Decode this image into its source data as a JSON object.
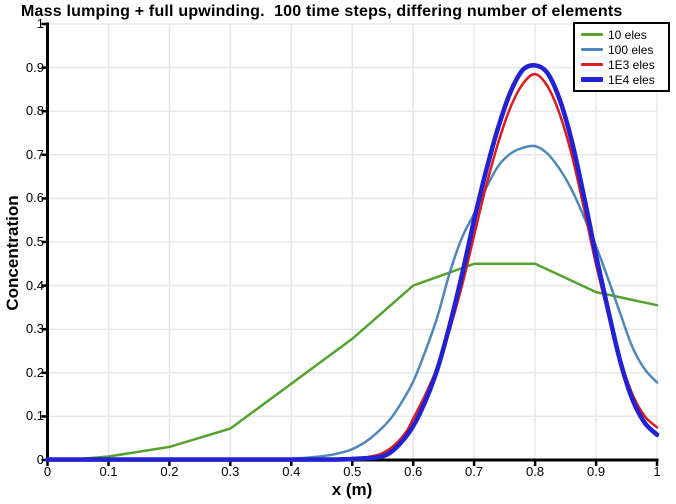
{
  "title": "Mass lumping + full upwinding.  100 time steps, differing number of elements",
  "colors": {
    "background": "#FFFFFF",
    "grid": "#E8E8E8",
    "axis": "#000000",
    "legend_border": "#000000"
  },
  "legend": {
    "position": "top-right",
    "items": [
      "10 eles",
      "100 eles",
      "1E3 eles",
      "1E4 eles"
    ]
  },
  "chart_data": {
    "type": "line",
    "title": "Mass lumping + full upwinding.  100 time steps, differing number of elements",
    "xlabel": "x (m)",
    "ylabel": "Concentration",
    "xlim": [
      0,
      1
    ],
    "ylim": [
      0,
      1
    ],
    "grid": true,
    "legend_position": "top-right",
    "x_tick_values": [
      0,
      0.1,
      0.2,
      0.3,
      0.4,
      0.5,
      0.6,
      0.7,
      0.8,
      0.9,
      1
    ],
    "x_ticks": [
      "0",
      "0.1",
      "0.2",
      "0.3",
      "0.4",
      "0.5",
      "0.6",
      "0.7",
      "0.8",
      "0.9",
      "1"
    ],
    "y_tick_values": [
      0,
      0.1,
      0.2,
      0.3,
      0.4,
      0.5,
      0.6,
      0.7,
      0.8,
      0.9,
      1
    ],
    "y_ticks": [
      "0",
      "0.1",
      "0.2",
      "0.3",
      "0.4",
      "0.5",
      "0.6",
      "0.7",
      "0.8",
      "0.9",
      "1"
    ],
    "series": [
      {
        "name": "10 eles",
        "color": "#54A32C",
        "width": 2.5,
        "smooth": false,
        "points": [
          [
            0,
            0.001
          ],
          [
            0.05,
            0.002
          ],
          [
            0.1,
            0.008
          ],
          [
            0.2,
            0.03
          ],
          [
            0.3,
            0.072
          ],
          [
            0.4,
            0.175
          ],
          [
            0.5,
            0.278
          ],
          [
            0.6,
            0.4
          ],
          [
            0.7,
            0.45
          ],
          [
            0.8,
            0.45
          ],
          [
            0.9,
            0.385
          ],
          [
            1,
            0.355
          ]
        ]
      },
      {
        "name": "100 eles",
        "color": "#4E87BC",
        "width": 2.5,
        "smooth": true,
        "points": [
          [
            0,
            0.001
          ],
          [
            0.25,
            0.001
          ],
          [
            0.35,
            0.002
          ],
          [
            0.4,
            0.003
          ],
          [
            0.44,
            0.007
          ],
          [
            0.47,
            0.013
          ],
          [
            0.5,
            0.025
          ],
          [
            0.53,
            0.05
          ],
          [
            0.56,
            0.09
          ],
          [
            0.58,
            0.13
          ],
          [
            0.6,
            0.18
          ],
          [
            0.62,
            0.25
          ],
          [
            0.64,
            0.33
          ],
          [
            0.66,
            0.43
          ],
          [
            0.68,
            0.51
          ],
          [
            0.7,
            0.565
          ],
          [
            0.72,
            0.625
          ],
          [
            0.74,
            0.675
          ],
          [
            0.76,
            0.703
          ],
          [
            0.78,
            0.716
          ],
          [
            0.8,
            0.72
          ],
          [
            0.82,
            0.703
          ],
          [
            0.84,
            0.668
          ],
          [
            0.86,
            0.62
          ],
          [
            0.88,
            0.558
          ],
          [
            0.9,
            0.49
          ],
          [
            0.92,
            0.415
          ],
          [
            0.94,
            0.335
          ],
          [
            0.96,
            0.258
          ],
          [
            0.98,
            0.208
          ],
          [
            1,
            0.178
          ]
        ]
      },
      {
        "name": "1E3 eles",
        "color": "#E01B1B",
        "width": 2.5,
        "smooth": true,
        "points": [
          [
            0,
            0.001
          ],
          [
            0.3,
            0.001
          ],
          [
            0.45,
            0.002
          ],
          [
            0.5,
            0.004
          ],
          [
            0.53,
            0.008
          ],
          [
            0.55,
            0.016
          ],
          [
            0.57,
            0.035
          ],
          [
            0.59,
            0.068
          ],
          [
            0.6,
            0.095
          ],
          [
            0.62,
            0.15
          ],
          [
            0.64,
            0.215
          ],
          [
            0.66,
            0.3
          ],
          [
            0.68,
            0.4
          ],
          [
            0.7,
            0.515
          ],
          [
            0.72,
            0.63
          ],
          [
            0.74,
            0.73
          ],
          [
            0.76,
            0.81
          ],
          [
            0.78,
            0.863
          ],
          [
            0.8,
            0.885
          ],
          [
            0.82,
            0.858
          ],
          [
            0.84,
            0.795
          ],
          [
            0.86,
            0.7
          ],
          [
            0.88,
            0.578
          ],
          [
            0.9,
            0.448
          ],
          [
            0.92,
            0.335
          ],
          [
            0.94,
            0.23
          ],
          [
            0.96,
            0.15
          ],
          [
            0.98,
            0.1
          ],
          [
            1,
            0.075
          ]
        ]
      },
      {
        "name": "1E4 eles",
        "color": "#2222D2",
        "width": 4.6,
        "smooth": true,
        "points": [
          [
            0,
            0.001
          ],
          [
            0.3,
            0.001
          ],
          [
            0.46,
            0.001
          ],
          [
            0.51,
            0.003
          ],
          [
            0.54,
            0.006
          ],
          [
            0.56,
            0.015
          ],
          [
            0.58,
            0.04
          ],
          [
            0.6,
            0.078
          ],
          [
            0.62,
            0.135
          ],
          [
            0.64,
            0.21
          ],
          [
            0.66,
            0.31
          ],
          [
            0.68,
            0.425
          ],
          [
            0.7,
            0.55
          ],
          [
            0.72,
            0.665
          ],
          [
            0.74,
            0.765
          ],
          [
            0.76,
            0.845
          ],
          [
            0.78,
            0.895
          ],
          [
            0.8,
            0.905
          ],
          [
            0.82,
            0.888
          ],
          [
            0.84,
            0.828
          ],
          [
            0.86,
            0.732
          ],
          [
            0.88,
            0.605
          ],
          [
            0.9,
            0.468
          ],
          [
            0.92,
            0.343
          ],
          [
            0.94,
            0.225
          ],
          [
            0.96,
            0.138
          ],
          [
            0.98,
            0.085
          ],
          [
            1,
            0.058
          ]
        ]
      }
    ]
  }
}
